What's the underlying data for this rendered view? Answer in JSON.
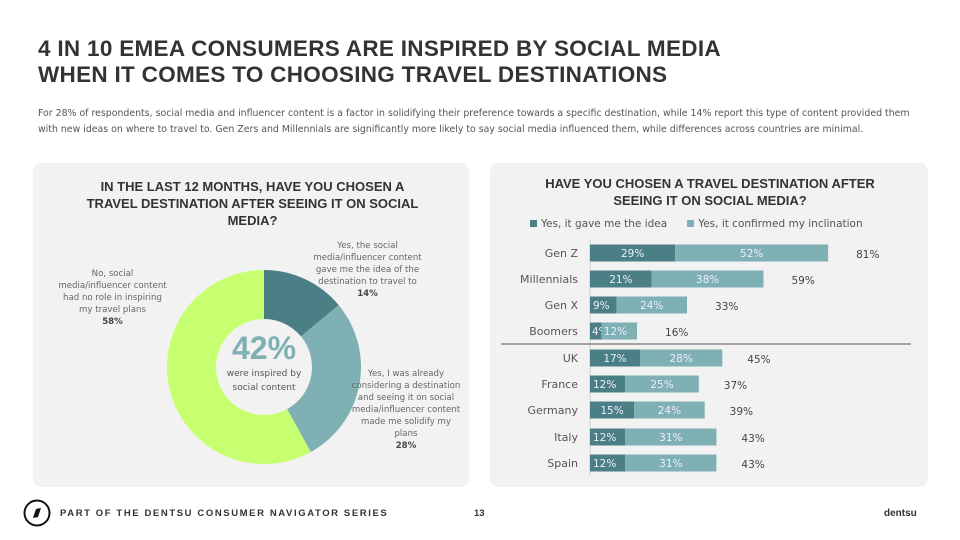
{
  "title_lines": [
    "4 IN 10 EMEA CONSUMERS ARE INSPIRED BY SOCIAL MEDIA",
    "WHEN IT COMES TO CHOOSING  TRAVEL DESTINATIONS"
  ],
  "subtitle": "For 28% of respondents, social media and influencer content is a factor in solidifying their preference towards a specific destination, while 14% report this type of content provided them with new ideas on where to travel to. Gen Zers and Millennials are significantly more likely to say social media influenced them, while differences across countries are minimal.",
  "colors": {
    "dark": "#4a7f85",
    "light": "#7fb0b4",
    "lime": "#c6ff6f",
    "card": "#f2f2f2"
  },
  "chart_data": [
    {
      "type": "pie",
      "title": "IN THE LAST 12 MONTHS, HAVE YOU CHOSEN A TRAVEL DESTINATION AFTER SEEING IT ON SOCIAL MEDIA?",
      "slices": [
        {
          "label": "Yes, the social media/influencer content gave me the idea of the destination to travel to",
          "value": 14,
          "value_label": "14%"
        },
        {
          "label": "Yes, I was already considering a destination and seeing it on social media/influencer content made me solidify my plans",
          "value": 28,
          "value_label": "28%"
        },
        {
          "label": "No, social media/influencer content had no role in inspiring my travel plans",
          "value": 58,
          "value_label": "58%"
        }
      ],
      "center_value": "42%",
      "center_text": "were inspired by social content"
    },
    {
      "type": "bar",
      "stacked": true,
      "orientation": "horizontal",
      "title": "HAVE YOU CHOSEN A TRAVEL DESTINATION AFTER SEEING IT ON SOCIAL MEDIA?",
      "legend": [
        "Yes, it gave me the idea",
        "Yes, it confirmed my inclination"
      ],
      "legend_position": "top",
      "categories": [
        "Gen Z",
        "Millennials",
        "Gen X",
        "Boomers",
        "UK",
        "France",
        "Germany",
        "Italy",
        "Spain"
      ],
      "series": [
        {
          "name": "Yes, it gave me the idea",
          "values": [
            29,
            21,
            9,
            4,
            17,
            12,
            15,
            12,
            12
          ]
        },
        {
          "name": "Yes, it confirmed my inclination",
          "values": [
            52,
            38,
            24,
            12,
            28,
            25,
            24,
            31,
            31
          ]
        }
      ],
      "totals": [
        81,
        59,
        33,
        16,
        45,
        37,
        39,
        43,
        43
      ],
      "divider_after": "Boomers"
    }
  ],
  "footer": {
    "series": "PART OF THE DENTSU CONSUMER NAVIGATOR SERIES",
    "page": "13",
    "brand": "dentsu"
  }
}
